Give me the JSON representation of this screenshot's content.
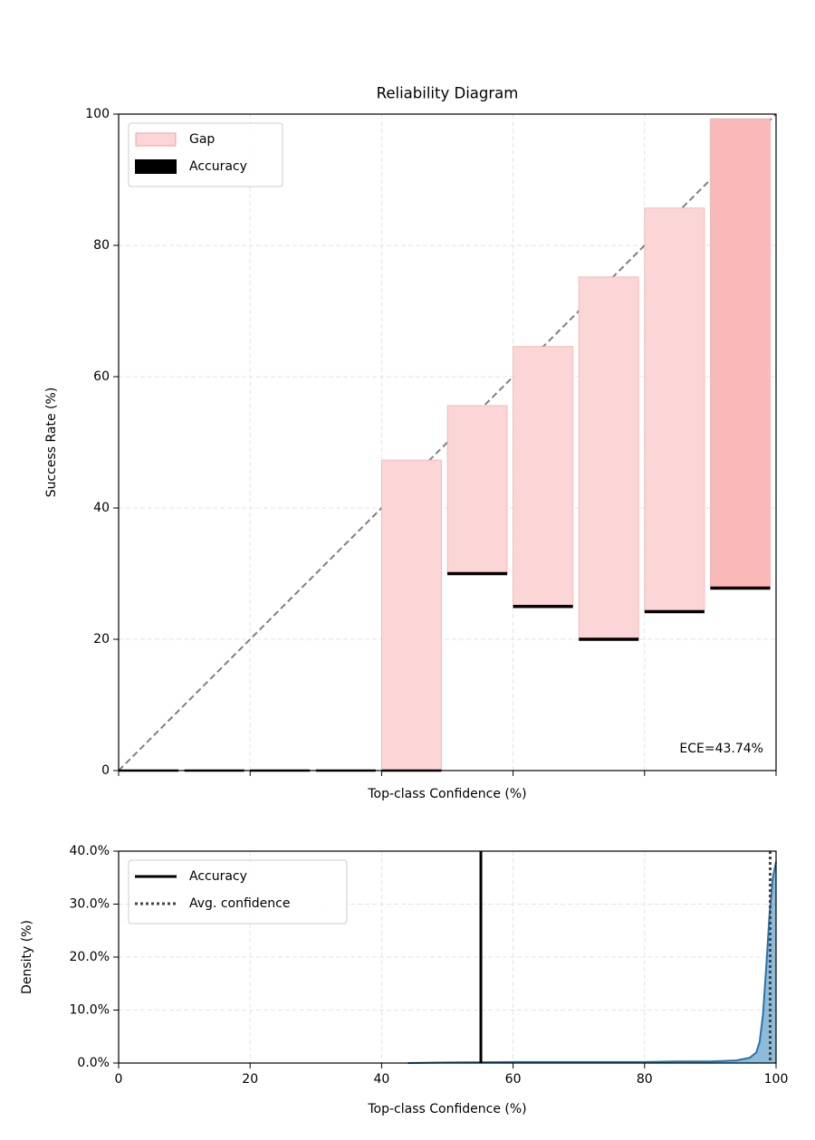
{
  "chart_data": [
    {
      "type": "bar",
      "title": "Reliability Diagram",
      "xlabel": "Top-class Confidence (%)",
      "ylabel": "Success Rate (%)",
      "xlim": [
        0,
        100
      ],
      "ylim": [
        0,
        100
      ],
      "xticks": [
        0,
        20,
        40,
        60,
        80,
        100
      ],
      "yticks": [
        0,
        20,
        40,
        60,
        80,
        100
      ],
      "grid": true,
      "legend": "upper left",
      "bin_edges": [
        0,
        10,
        20,
        30,
        40,
        50,
        60,
        70,
        80,
        90,
        100
      ],
      "series": [
        {
          "name": "Gap",
          "color": "#fcd5d6",
          "colors": [
            "#fcd5d6",
            "#fcd5d6",
            "#fcd5d6",
            "#fcd5d6",
            "#fcd5d6",
            "#fcd5d6",
            "#fcd5d6",
            "#fcd5d6",
            "#fcd5d6",
            "#f9b9b9"
          ],
          "values": [
            null,
            null,
            null,
            null,
            47.3,
            25.6,
            39.6,
            55.2,
            61.5,
            71.5
          ]
        },
        {
          "name": "Accuracy",
          "color": "#000000",
          "values": [
            0,
            0,
            0,
            0,
            0,
            30,
            25,
            20,
            24.2,
            27.8
          ]
        }
      ],
      "annotation": "ECE=43.74%"
    },
    {
      "type": "density",
      "xlabel": "Top-class Confidence (%)",
      "ylabel": "Density (%)",
      "xlim": [
        0,
        100
      ],
      "ylim": [
        0,
        40
      ],
      "xticks": [
        0,
        20,
        40,
        60,
        80,
        100
      ],
      "yticks": [
        {
          "value": 0,
          "label": "0.0%"
        },
        {
          "value": 10,
          "label": "10.0%"
        },
        {
          "value": 20,
          "label": "20.0%"
        },
        {
          "value": 30,
          "label": "30.0%"
        },
        {
          "value": 40,
          "label": "40.0%"
        }
      ],
      "grid": true,
      "legend": "upper left",
      "color": "#1f77b4",
      "x": [
        44,
        50,
        60,
        70,
        80,
        85,
        90,
        94,
        96,
        97,
        97.5,
        98,
        98.5,
        99,
        99.5,
        100
      ],
      "values": [
        0,
        0.1,
        0.2,
        0.2,
        0.2,
        0.3,
        0.3,
        0.5,
        1.0,
        2,
        4,
        9,
        18,
        28,
        35,
        38
      ],
      "lines": [
        {
          "name": "Accuracy",
          "value": 55.1,
          "color": "#000000",
          "style": "solid"
        },
        {
          "name": "Avg. confidence",
          "value": 99.1,
          "color": "#444444",
          "style": "dotted"
        }
      ]
    }
  ]
}
